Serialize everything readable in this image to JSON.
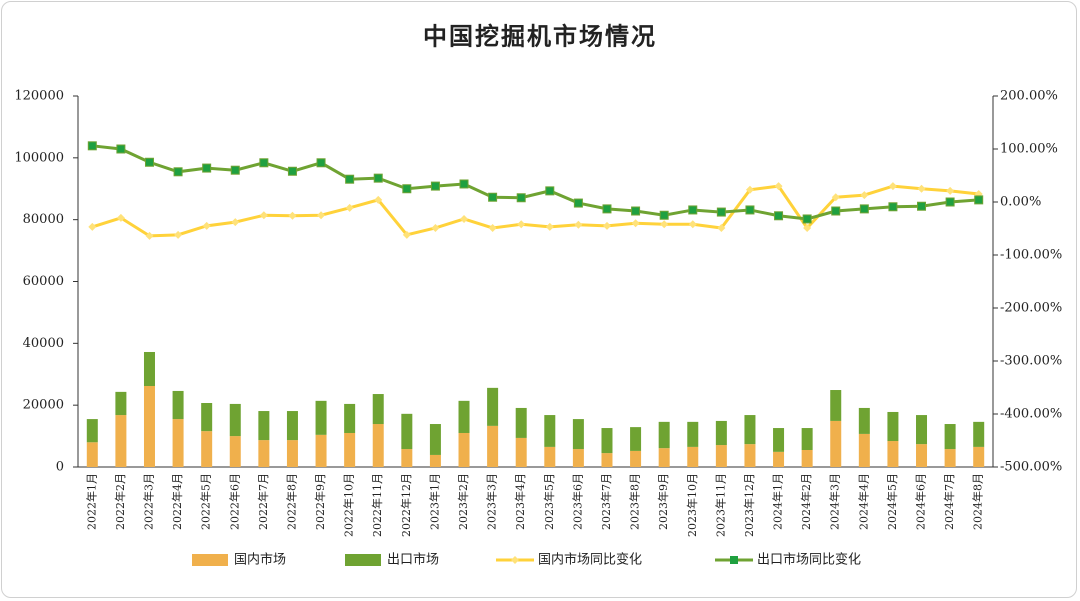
{
  "chart_data": {
    "type": "bar",
    "title": "中国挖掘机市场情况",
    "stacked": true,
    "categories": [
      "2022年1月",
      "2022年2月",
      "2022年3月",
      "2022年4月",
      "2022年5月",
      "2022年6月",
      "2022年7月",
      "2022年8月",
      "2022年9月",
      "2022年10月",
      "2022年11月",
      "2022年12月",
      "2023年1月",
      "2023年2月",
      "2023年3月",
      "2023年4月",
      "2023年5月",
      "2023年6月",
      "2023年7月",
      "2023年8月",
      "2023年9月",
      "2023年10月",
      "2023年11月",
      "2023年12月",
      "2024年1月",
      "2024年2月",
      "2024年3月",
      "2024年4月",
      "2024年5月",
      "2024年6月",
      "2024年7月",
      "2024年8月"
    ],
    "series": [
      {
        "name": "国内市场",
        "type": "bar",
        "color": "#f0b04c",
        "values": [
          8000,
          16800,
          26200,
          15500,
          11600,
          10000,
          8700,
          8700,
          10400,
          11000,
          13900,
          5800,
          3900,
          11000,
          13300,
          9400,
          6500,
          5800,
          4500,
          5200,
          6100,
          6500,
          7100,
          7400,
          4900,
          5500,
          14900,
          10700,
          8400,
          7400,
          5800,
          6500
        ]
      },
      {
        "name": "出口市场",
        "type": "bar",
        "color": "#6fa332",
        "values": [
          7500,
          7500,
          11000,
          9100,
          9100,
          10400,
          9400,
          9400,
          11000,
          9400,
          9700,
          11400,
          10000,
          10400,
          12300,
          9700,
          10300,
          9700,
          8100,
          7700,
          8500,
          8100,
          7800,
          9400,
          7700,
          7100,
          10000,
          8400,
          9400,
          9400,
          8100,
          8100
        ]
      },
      {
        "name": "国内市场同比变化",
        "type": "line",
        "axis": "y2",
        "color": "#ffd23a",
        "marker_color": "#ffe27a",
        "marker": "diamond",
        "values": [
          -47,
          -30,
          -64,
          -62,
          -45,
          -38,
          -25,
          -26,
          -25,
          -11,
          4,
          -62,
          -49,
          -32,
          -49,
          -42,
          -47,
          -43,
          -45,
          -40,
          -42,
          -42,
          -49,
          23,
          30,
          -49,
          9,
          13,
          30,
          25,
          21,
          15
        ]
      },
      {
        "name": "出口市场同比变化",
        "type": "line",
        "axis": "y2",
        "color": "#6fa332",
        "marker_color": "#1fa040",
        "marker": "square",
        "values": [
          106,
          100,
          75,
          57,
          64,
          60,
          74,
          58,
          74,
          43,
          45,
          25,
          30,
          34,
          9,
          8,
          21,
          -2,
          -13,
          -17,
          -25,
          -15,
          -19,
          -15,
          -26,
          -32,
          -17,
          -13,
          -9,
          -8,
          0,
          4
        ]
      }
    ],
    "ylim": [
      0,
      120000
    ],
    "yticks": [
      0,
      20000,
      40000,
      60000,
      80000,
      100000,
      120000
    ],
    "y2lim": [
      -500,
      200
    ],
    "y2ticks": [
      {
        "value": -500,
        "label": "-500.00%"
      },
      {
        "value": -400,
        "label": "-400.00%"
      },
      {
        "value": -300,
        "label": "-300.00%"
      },
      {
        "value": -200,
        "label": "-200.00%"
      },
      {
        "value": -100,
        "label": "-100.00%"
      },
      {
        "value": 0,
        "label": "0.00%"
      },
      {
        "value": 100,
        "label": "100.00%"
      },
      {
        "value": 200,
        "label": "200.00%"
      }
    ],
    "legend": "bottom"
  }
}
